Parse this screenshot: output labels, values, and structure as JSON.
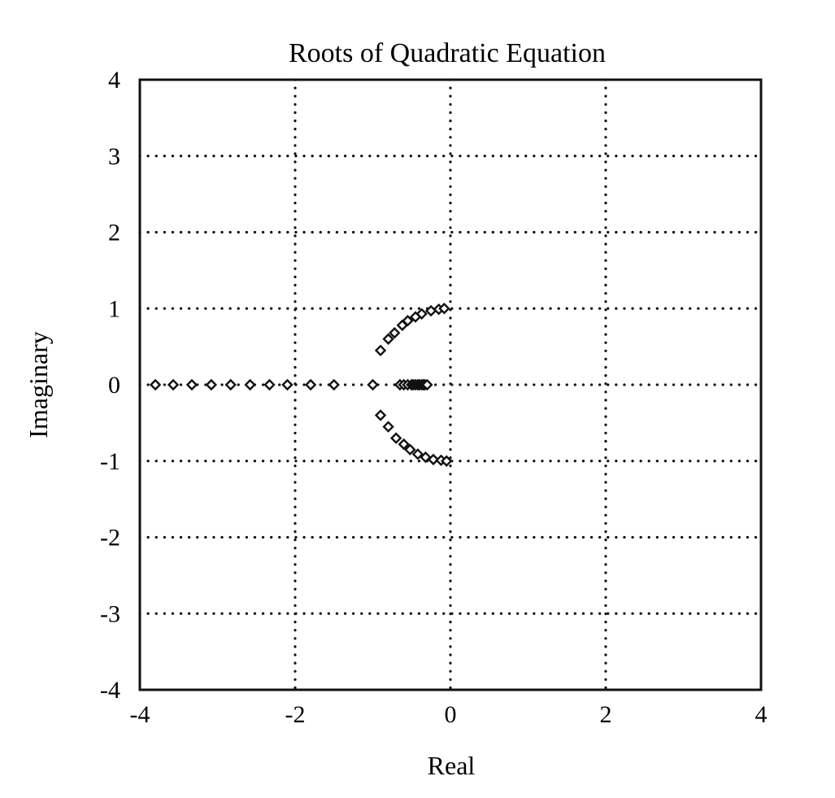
{
  "chart_data": {
    "type": "scatter",
    "title": "Roots of Quadratic Equation",
    "xlabel": "Real",
    "ylabel": "Imaginary",
    "xlim": [
      -4,
      4
    ],
    "ylim": [
      -4,
      4
    ],
    "xticks": [
      -4,
      -2,
      0,
      2,
      4
    ],
    "yticks": [
      -4,
      -3,
      -2,
      -1,
      0,
      1,
      2,
      3,
      4
    ],
    "xtick_labels": [
      "-4",
      "-2",
      "0",
      "2",
      "4"
    ],
    "ytick_labels": [
      "-4",
      "-3",
      "-2",
      "-1",
      "0",
      "1",
      "2",
      "3",
      "4"
    ],
    "grid": "dotted",
    "legend": "none",
    "marker": "diamond",
    "colors": {
      "axes": "#111111",
      "grid": "#111111",
      "marker": "#111111",
      "background": "#ffffff"
    },
    "series": [
      {
        "points": [
          [
            -3.8,
            0
          ],
          [
            -3.57,
            0
          ],
          [
            -3.33,
            0
          ],
          [
            -3.08,
            0
          ],
          [
            -2.83,
            0
          ],
          [
            -2.58,
            0
          ],
          [
            -2.33,
            0
          ],
          [
            -2.1,
            0
          ],
          [
            -1.8,
            0
          ],
          [
            -1.5,
            0
          ],
          [
            -1.0,
            0
          ],
          [
            -0.65,
            0
          ],
          [
            -0.6,
            0
          ],
          [
            -0.55,
            0
          ],
          [
            -0.5,
            0
          ],
          [
            -0.48,
            0
          ],
          [
            -0.45,
            0
          ],
          [
            -0.42,
            0
          ],
          [
            -0.4,
            0
          ],
          [
            -0.37,
            0
          ],
          [
            -0.35,
            0
          ],
          [
            -0.33,
            0
          ],
          [
            -0.3,
            0
          ],
          [
            -0.9,
            0.45
          ],
          [
            -0.8,
            0.6
          ],
          [
            -0.72,
            0.68
          ],
          [
            -0.62,
            0.78
          ],
          [
            -0.55,
            0.84
          ],
          [
            -0.45,
            0.89
          ],
          [
            -0.37,
            0.93
          ],
          [
            -0.25,
            0.97
          ],
          [
            -0.15,
            0.99
          ],
          [
            -0.08,
            1.0
          ],
          [
            -0.9,
            -0.4
          ],
          [
            -0.8,
            -0.55
          ],
          [
            -0.7,
            -0.7
          ],
          [
            -0.6,
            -0.78
          ],
          [
            -0.52,
            -0.85
          ],
          [
            -0.42,
            -0.91
          ],
          [
            -0.32,
            -0.95
          ],
          [
            -0.22,
            -0.98
          ],
          [
            -0.12,
            -0.99
          ],
          [
            -0.05,
            -1.0
          ]
        ]
      }
    ]
  }
}
